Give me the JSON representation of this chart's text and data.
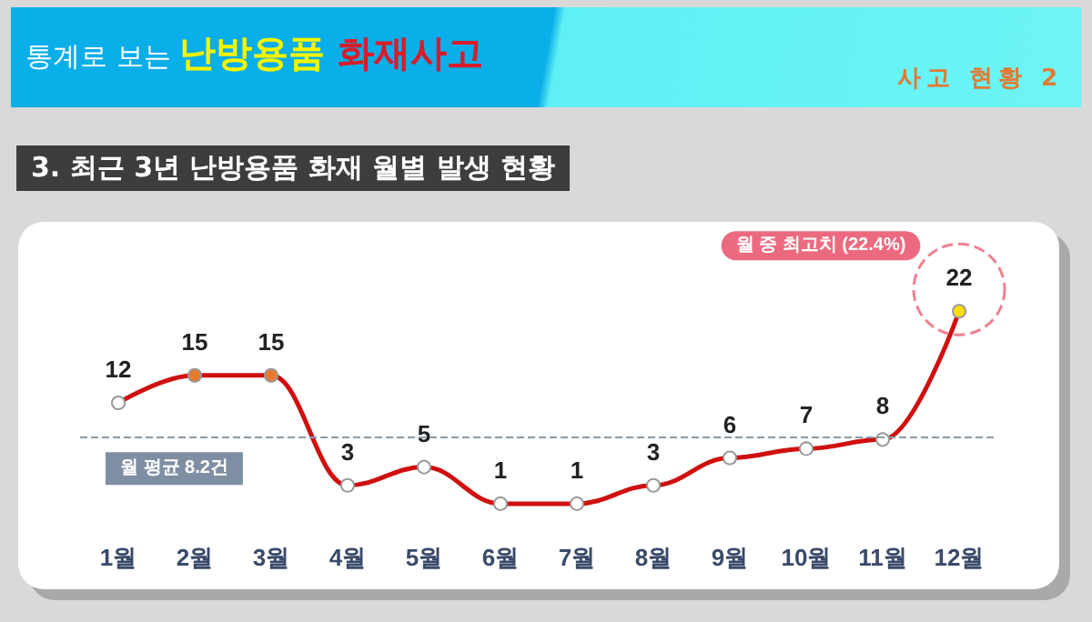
{
  "chart_data": {
    "type": "line",
    "title": "통계로 보는 난방용품 화재사고",
    "subtitle": "3. 최근 3년 난방용품 화재 월별 발생 현황",
    "categories": [
      "1월",
      "2월",
      "3월",
      "4월",
      "5월",
      "6월",
      "7월",
      "8월",
      "9월",
      "10월",
      "11월",
      "12월"
    ],
    "series": [
      {
        "color": "#d01010",
        "values": [
          12,
          15,
          15,
          3,
          5,
          1,
          1,
          3,
          6,
          7,
          8,
          22
        ],
        "colors": [
          "#ffffff",
          "#e87a30",
          "#e87a30",
          "#ffffff",
          "#ffffff",
          "#ffffff",
          "#ffffff",
          "#ffffff",
          "#ffffff",
          "#ffffff",
          "#ffffff",
          "#ffe000"
        ]
      }
    ],
    "data_labels": true,
    "marker": "circle",
    "line_style": "solid",
    "grid": false,
    "ref_lines": [
      {
        "axis": "y",
        "value": 8.2,
        "label": "월 평균 8.2건",
        "color": "#8a9aaa",
        "line_style": "dashed"
      }
    ],
    "annotations": [
      "사고 현황 2",
      "월 중 최고치 (22.4%)"
    ]
  }
}
